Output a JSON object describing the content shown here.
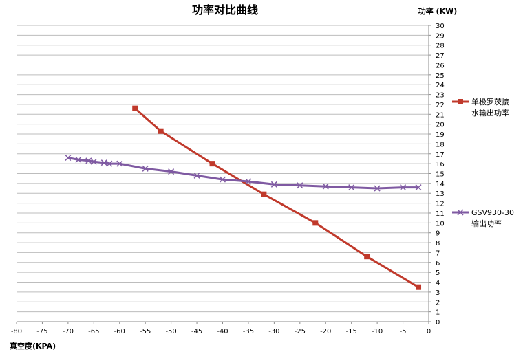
{
  "chart_data": {
    "type": "line",
    "title": "功率对比曲线",
    "xlabel": "真空度(KPA)",
    "ylabel": "功率 (KW)",
    "xlim": [
      -80,
      0
    ],
    "ylim": [
      0,
      30
    ],
    "x_ticks": [
      -80,
      -75,
      -70,
      -65,
      -60,
      -55,
      -50,
      -45,
      -40,
      -35,
      -30,
      -25,
      -20,
      -15,
      -10,
      -5,
      0
    ],
    "y_ticks": [
      0,
      1,
      2,
      3,
      4,
      5,
      6,
      7,
      8,
      9,
      10,
      11,
      12,
      13,
      14,
      15,
      16,
      17,
      18,
      19,
      20,
      21,
      22,
      23,
      24,
      25,
      26,
      27,
      28,
      29,
      30
    ],
    "grid": "horizontal",
    "legend_position": "right",
    "series": [
      {
        "name_lines": [
          "单极罗茨接",
          "水输出功率"
        ],
        "color": "#c0392b",
        "marker": "square",
        "points": [
          {
            "x": -57,
            "y": 21.6
          },
          {
            "x": -52,
            "y": 19.3
          },
          {
            "x": -42,
            "y": 16.0
          },
          {
            "x": -32,
            "y": 12.9
          },
          {
            "x": -22,
            "y": 10.0
          },
          {
            "x": -12,
            "y": 6.6
          },
          {
            "x": -2,
            "y": 3.5
          }
        ]
      },
      {
        "name_lines": [
          "GSV930-30",
          "输出功率"
        ],
        "color": "#7f5aa2",
        "marker": "x",
        "points": [
          {
            "x": -70,
            "y": 16.6
          },
          {
            "x": -68,
            "y": 16.4
          },
          {
            "x": -66,
            "y": 16.3
          },
          {
            "x": -65,
            "y": 16.2
          },
          {
            "x": -63,
            "y": 16.1
          },
          {
            "x": -62,
            "y": 16.0
          },
          {
            "x": -60,
            "y": 16.0
          },
          {
            "x": -55,
            "y": 15.5
          },
          {
            "x": -50,
            "y": 15.2
          },
          {
            "x": -45,
            "y": 14.8
          },
          {
            "x": -40,
            "y": 14.4
          },
          {
            "x": -35,
            "y": 14.2
          },
          {
            "x": -30,
            "y": 13.9
          },
          {
            "x": -25,
            "y": 13.8
          },
          {
            "x": -20,
            "y": 13.7
          },
          {
            "x": -15,
            "y": 13.6
          },
          {
            "x": -10,
            "y": 13.5
          },
          {
            "x": -5,
            "y": 13.6
          },
          {
            "x": -2,
            "y": 13.6
          }
        ]
      }
    ]
  }
}
